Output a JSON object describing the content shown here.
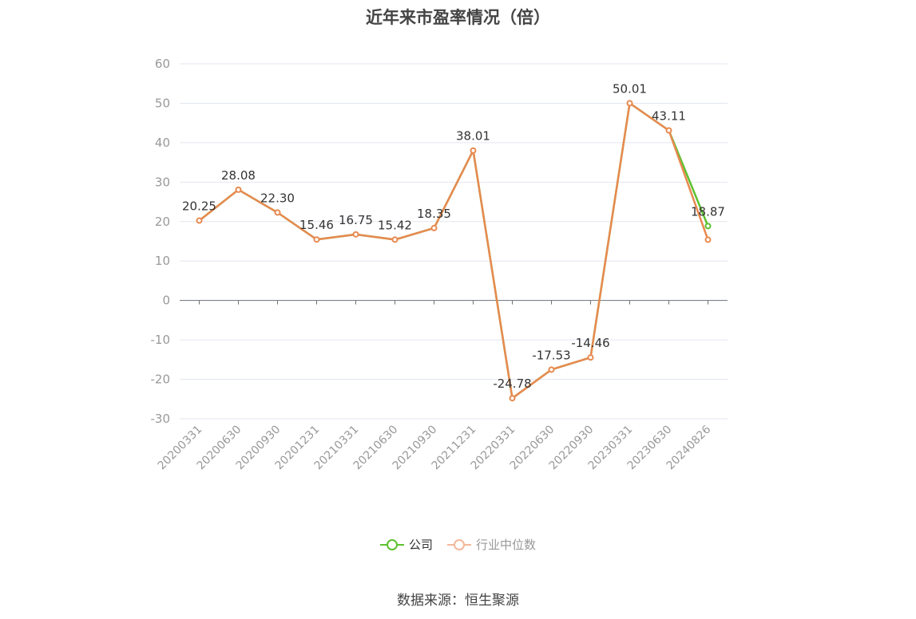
{
  "title": "近年来市盈率情况（倍）",
  "source": "数据来源：恒生聚源",
  "chart_data": {
    "type": "line",
    "categories": [
      "20200331",
      "20200630",
      "20200930",
      "20201231",
      "20210331",
      "20210630",
      "20210930",
      "20211231",
      "20220331",
      "20220630",
      "20220930",
      "20230331",
      "20230630",
      "20240826"
    ],
    "ylim": [
      -30,
      60
    ],
    "yticks": [
      60,
      50,
      40,
      30,
      20,
      10,
      0,
      -10,
      -20,
      -30
    ],
    "grid": true,
    "legend_position": "bottom",
    "series": [
      {
        "name": "公司",
        "color": "#5cc12f",
        "values": [
          20.25,
          28.08,
          22.3,
          15.46,
          16.75,
          15.42,
          18.35,
          38.01,
          -24.78,
          -17.53,
          -14.46,
          50.01,
          43.11,
          18.87
        ],
        "labels": [
          "20.25",
          "28.08",
          "22.30",
          "15.46",
          "16.75",
          "15.42",
          "18.35",
          "38.01",
          "-24.78",
          "-17.53",
          "-14.46",
          "50.01",
          "43.11",
          "18.87"
        ]
      },
      {
        "name": "行业中位数",
        "color": "#e8894f",
        "values": [
          20.25,
          28.08,
          22.3,
          15.46,
          16.75,
          15.42,
          18.35,
          38.01,
          -24.78,
          -17.53,
          -14.46,
          50.01,
          43.11,
          15.4
        ]
      }
    ]
  }
}
